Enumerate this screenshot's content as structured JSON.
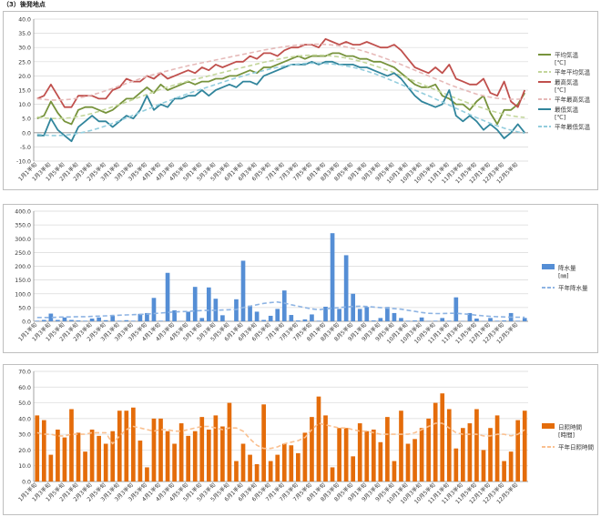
{
  "heading": "（3）後発地点",
  "colors": {
    "avg": "#77933C",
    "avg_normal": "#C3D69B",
    "max": "#C0504D",
    "max_normal": "#E6B9B8",
    "min": "#31859C",
    "min_normal": "#93CDDD",
    "precip": "#558ED5",
    "precip_normal": "#8EB4E3",
    "sun": "#E46C0A",
    "sun_normal": "#FAC090"
  },
  "chart_data": [
    {
      "type": "line",
      "categories": [
        "1月1半旬",
        "1月2半旬",
        "1月3半旬",
        "1月4半旬",
        "1月5半旬",
        "1月6半旬",
        "2月1半旬",
        "2月2半旬",
        "2月3半旬",
        "2月4半旬",
        "2月5半旬",
        "2月6半旬",
        "3月1半旬",
        "3月2半旬",
        "3月3半旬",
        "3月4半旬",
        "3月5半旬",
        "3月6半旬",
        "4月1半旬",
        "4月2半旬",
        "4月3半旬",
        "4月4半旬",
        "4月5半旬",
        "4月6半旬",
        "5月1半旬",
        "5月2半旬",
        "5月3半旬",
        "5月4半旬",
        "5月5半旬",
        "5月6半旬",
        "6月1半旬",
        "6月2半旬",
        "6月3半旬",
        "6月4半旬",
        "6月5半旬",
        "6月6半旬",
        "7月1半旬",
        "7月2半旬",
        "7月3半旬",
        "7月4半旬",
        "7月5半旬",
        "7月6半旬",
        "8月1半旬",
        "8月2半旬",
        "8月3半旬",
        "8月4半旬",
        "8月5半旬",
        "8月6半旬",
        "9月1半旬",
        "9月2半旬",
        "9月3半旬",
        "9月4半旬",
        "9月5半旬",
        "9月6半旬",
        "10月1半旬",
        "10月2半旬",
        "10月3半旬",
        "10月4半旬",
        "10月5半旬",
        "10月6半旬",
        "11月1半旬",
        "11月2半旬",
        "11月3半旬",
        "11月4半旬",
        "11月5半旬",
        "11月6半旬",
        "12月1半旬",
        "12月2半旬",
        "12月3半旬",
        "12月4半旬",
        "12月5半旬",
        "12月6半旬"
      ],
      "xtick_labels": [
        "1月1半旬",
        "1月3半旬",
        "1月5半旬",
        "2月1半旬",
        "2月3半旬",
        "2月5半旬",
        "3月1半旬",
        "3月3半旬",
        "3月5半旬",
        "4月1半旬",
        "4月3半旬",
        "4月5半旬",
        "5月1半旬",
        "5月3半旬",
        "5月5半旬",
        "6月1半旬",
        "6月3半旬",
        "6月5半旬",
        "7月1半旬",
        "7月3半旬",
        "7月5半旬",
        "8月1半旬",
        "8月3半旬",
        "8月5半旬",
        "9月1半旬",
        "9月3半旬",
        "9月5半旬",
        "10月1半旬",
        "10月3半旬",
        "10月5半旬",
        "11月1半旬",
        "11月3半旬",
        "11月5半旬",
        "12月1半旬",
        "12月3半旬",
        "12月5半旬"
      ],
      "ylim": [
        -10,
        40
      ],
      "yticks": [
        "-10.0",
        "-5.0",
        "0.0",
        "5.0",
        "10.0",
        "15.0",
        "20.0",
        "25.0",
        "30.0",
        "35.0",
        "40.0"
      ],
      "legend_position": "right",
      "grid": true,
      "series": [
        {
          "name": "平均気温",
          "unit": "[℃]",
          "key": "avg",
          "dashed": false,
          "values": [
            5,
            6,
            11,
            7,
            4,
            3,
            8,
            9,
            9,
            8,
            7,
            8,
            10,
            12,
            12,
            14,
            16,
            14,
            17,
            15,
            16,
            17,
            18,
            17,
            18,
            18,
            19,
            19,
            20,
            20,
            21,
            22,
            21,
            23,
            23,
            24,
            25,
            26,
            27,
            26,
            27,
            27,
            27,
            28,
            28,
            27,
            27,
            26,
            26,
            25,
            25,
            24,
            23,
            21,
            19,
            17,
            16,
            16,
            17,
            13,
            12,
            10,
            10,
            8,
            11,
            13,
            7,
            3,
            8,
            8,
            10,
            14
          ]
        },
        {
          "name": "平年平均気温",
          "key": "avg_normal",
          "dashed": true,
          "values": [
            5.5,
            5.2,
            5.0,
            5.0,
            5.1,
            5.3,
            5.7,
            6.2,
            6.8,
            7.5,
            8.3,
            9.1,
            10.0,
            10.8,
            11.7,
            12.6,
            13.5,
            14.4,
            15.3,
            16.1,
            16.8,
            17.5,
            18.2,
            18.8,
            19.4,
            20.0,
            20.6,
            21.2,
            21.8,
            22.4,
            23.0,
            23.6,
            24.2,
            24.8,
            25.3,
            25.8,
            26.3,
            26.7,
            27.0,
            27.2,
            27.3,
            27.3,
            27.2,
            27.0,
            26.7,
            26.3,
            25.8,
            25.2,
            24.5,
            23.7,
            22.9,
            22.0,
            21.1,
            20.1,
            19.1,
            18.1,
            17.1,
            16.1,
            15.1,
            14.1,
            13.1,
            12.1,
            11.2,
            10.3,
            9.4,
            8.6,
            7.8,
            7.1,
            6.5,
            6.0,
            5.6,
            5.4
          ]
        },
        {
          "name": "最高気温",
          "unit": "[℃]",
          "key": "max",
          "dashed": false,
          "values": [
            12,
            13,
            17,
            13,
            9,
            9,
            13,
            13,
            13,
            12,
            12,
            15,
            16,
            19,
            18,
            18,
            20,
            19,
            21,
            19,
            20,
            21,
            22,
            21,
            23,
            22,
            24,
            23,
            24,
            25,
            25,
            27,
            26,
            28,
            28,
            27,
            29,
            30,
            30,
            31,
            31,
            30,
            33,
            32,
            31,
            32,
            31,
            31,
            32,
            31,
            30,
            30,
            31,
            29,
            26,
            23,
            22,
            21,
            23,
            21,
            24,
            19,
            18,
            17,
            17,
            19,
            14,
            13,
            18,
            11,
            9,
            15
          ]
        },
        {
          "name": "平年最高気温",
          "key": "max_normal",
          "dashed": true,
          "values": [
            12.0,
            11.7,
            11.5,
            11.5,
            11.6,
            11.8,
            12.2,
            12.7,
            13.3,
            14.0,
            14.8,
            15.6,
            16.5,
            17.3,
            18.2,
            19.0,
            19.8,
            20.5,
            21.2,
            21.8,
            22.4,
            23.0,
            23.6,
            24.1,
            24.6,
            25.1,
            25.6,
            26.1,
            26.6,
            27.1,
            27.6,
            28.1,
            28.6,
            29.1,
            29.5,
            29.9,
            30.3,
            30.6,
            30.9,
            31.1,
            31.2,
            31.2,
            31.1,
            30.9,
            30.6,
            30.2,
            29.7,
            29.1,
            28.4,
            27.6,
            26.8,
            25.9,
            25.0,
            24.0,
            23.0,
            22.0,
            21.0,
            20.0,
            19.0,
            18.0,
            17.0,
            16.1,
            15.2,
            14.4,
            13.6,
            13.0,
            12.5,
            12.1,
            11.9,
            11.8,
            11.8,
            11.9
          ]
        },
        {
          "name": "最低気温",
          "unit": "[℃]",
          "key": "min",
          "dashed": false,
          "values": [
            -1,
            -1,
            5,
            1,
            -1,
            -3,
            2,
            4,
            6,
            4,
            4,
            2,
            4,
            6,
            5,
            8,
            13,
            8,
            10,
            9,
            12,
            12,
            13,
            13,
            15,
            13,
            15,
            16,
            17,
            16,
            18,
            18,
            17,
            20,
            21,
            22,
            23,
            24,
            24,
            24,
            25,
            24,
            25,
            25,
            24,
            24,
            24,
            23,
            23,
            22,
            21,
            20,
            21,
            19,
            16,
            13,
            11,
            10,
            9,
            10,
            15,
            6,
            4,
            6,
            4,
            1,
            3,
            1,
            -2,
            0,
            3,
            0
          ]
        },
        {
          "name": "平年最低気温",
          "key": "min_normal",
          "dashed": true,
          "values": [
            -0.5,
            -0.8,
            -1.0,
            -1.0,
            -0.9,
            -0.6,
            -0.2,
            0.3,
            0.9,
            1.6,
            2.4,
            3.3,
            4.2,
            5.2,
            6.2,
            7.2,
            8.2,
            9.2,
            10.2,
            11.1,
            12.0,
            12.9,
            13.8,
            14.6,
            15.4,
            16.2,
            17.0,
            17.8,
            18.6,
            19.3,
            20.0,
            20.7,
            21.3,
            21.9,
            22.5,
            23.0,
            23.5,
            23.9,
            24.2,
            24.4,
            24.5,
            24.5,
            24.4,
            24.2,
            23.9,
            23.5,
            23.0,
            22.4,
            21.7,
            20.9,
            20.0,
            19.0,
            18.0,
            17.0,
            16.0,
            15.0,
            14.0,
            13.0,
            11.9,
            10.8,
            9.7,
            8.6,
            7.5,
            6.4,
            5.3,
            4.3,
            3.3,
            2.4,
            1.6,
            0.9,
            0.3,
            -0.2
          ]
        }
      ]
    },
    {
      "type": "bar",
      "categories_ref": 0,
      "ylim": [
        0,
        400
      ],
      "yticks": [
        "0.0",
        "50.0",
        "100.0",
        "150.0",
        "200.0",
        "250.0",
        "300.0",
        "350.0",
        "400.0"
      ],
      "legend_position": "right",
      "grid": true,
      "series": [
        {
          "name": "降水量",
          "unit": "[㎜]",
          "key": "precip",
          "kind": "bar",
          "values": [
            2,
            5,
            28,
            5,
            14,
            5,
            3,
            2,
            10,
            14,
            4,
            20,
            2,
            4,
            2,
            27,
            30,
            85,
            2,
            176,
            40,
            1,
            35,
            125,
            12,
            123,
            82,
            22,
            1,
            80,
            220,
            57,
            35,
            5,
            20,
            45,
            112,
            23,
            3,
            7,
            25,
            2,
            53,
            320,
            45,
            240,
            100,
            45,
            52,
            3,
            12,
            52,
            30,
            12,
            2,
            3,
            14,
            1,
            2,
            12,
            2,
            87,
            1,
            30,
            10,
            1,
            12,
            2,
            3,
            30,
            2,
            12
          ]
        },
        {
          "name": "平年降水量",
          "key": "precip_normal",
          "kind": "line",
          "dashed": true,
          "values": [
            14,
            14,
            14,
            15,
            16,
            16,
            17,
            17,
            18,
            19,
            20,
            21,
            22,
            23,
            24,
            25,
            26,
            28,
            30,
            32,
            34,
            35,
            36,
            38,
            39,
            40,
            40,
            41,
            42,
            43,
            50,
            55,
            60,
            65,
            68,
            70,
            66,
            60,
            55,
            50,
            45,
            42,
            45,
            48,
            50,
            52,
            54,
            55,
            54,
            52,
            50,
            48,
            46,
            44,
            40,
            36,
            32,
            29,
            28,
            28,
            29,
            29,
            27,
            25,
            22,
            20,
            18,
            17,
            16,
            15,
            15,
            15
          ]
        }
      ]
    },
    {
      "type": "bar",
      "categories_ref": 0,
      "ylim": [
        0,
        70
      ],
      "yticks": [
        "0.0",
        "10.0",
        "20.0",
        "30.0",
        "40.0",
        "50.0",
        "60.0",
        "70.0"
      ],
      "legend_position": "right",
      "grid": true,
      "series": [
        {
          "name": "日照時間",
          "unit": "[時間]",
          "key": "sun",
          "kind": "bar",
          "values": [
            42,
            39,
            17,
            33,
            28,
            46,
            31,
            19,
            33,
            29,
            24,
            32,
            45,
            45,
            47,
            26,
            9,
            40,
            40,
            32,
            24,
            37,
            29,
            32,
            41,
            33,
            42,
            35,
            50,
            13,
            24,
            17,
            11,
            49,
            13,
            17,
            24,
            23,
            18,
            31,
            41,
            54,
            42,
            9,
            34,
            34,
            16,
            37,
            32,
            33,
            25,
            41,
            13,
            45,
            24,
            27,
            34,
            40,
            50,
            56,
            46,
            21,
            34,
            37,
            46,
            20,
            34,
            42,
            13,
            19,
            39,
            45
          ]
        },
        {
          "name": "平年日照時間",
          "key": "sun_normal",
          "kind": "line",
          "dashed": true,
          "values": [
            31,
            30,
            30,
            29,
            29,
            30,
            30,
            30,
            31,
            31,
            31,
            24,
            29,
            33,
            35,
            34,
            33,
            32,
            33,
            33,
            32,
            32,
            33,
            34,
            35,
            35,
            34,
            33,
            34,
            34,
            32,
            27,
            23,
            21,
            21,
            22,
            24,
            25,
            26,
            28,
            33,
            37,
            36,
            35,
            34,
            34,
            33,
            32,
            32,
            31,
            30,
            30,
            30,
            30,
            30,
            31,
            33,
            35,
            37,
            37,
            34,
            31,
            30,
            30,
            30,
            29,
            29,
            30,
            30,
            29,
            30,
            33
          ]
        }
      ]
    }
  ]
}
